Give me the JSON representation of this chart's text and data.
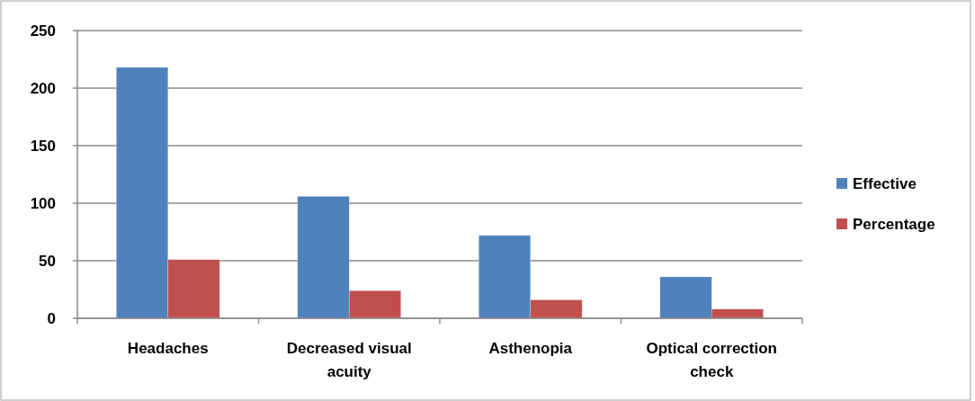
{
  "chart_data": {
    "type": "bar",
    "categories": [
      "Headaches",
      "Decreased visual acuity",
      "Asthenopia",
      "Optical correction check"
    ],
    "series": [
      {
        "name": "Effective",
        "color": "#4f81bd",
        "values": [
          218,
          106,
          72,
          36
        ]
      },
      {
        "name": "Percentage",
        "color": "#c0504d",
        "values": [
          51,
          24,
          16,
          8
        ]
      }
    ],
    "ylim": [
      0,
      250
    ],
    "yticks": [
      0,
      50,
      100,
      150,
      200,
      250
    ],
    "grid": "y",
    "legend": "right"
  }
}
